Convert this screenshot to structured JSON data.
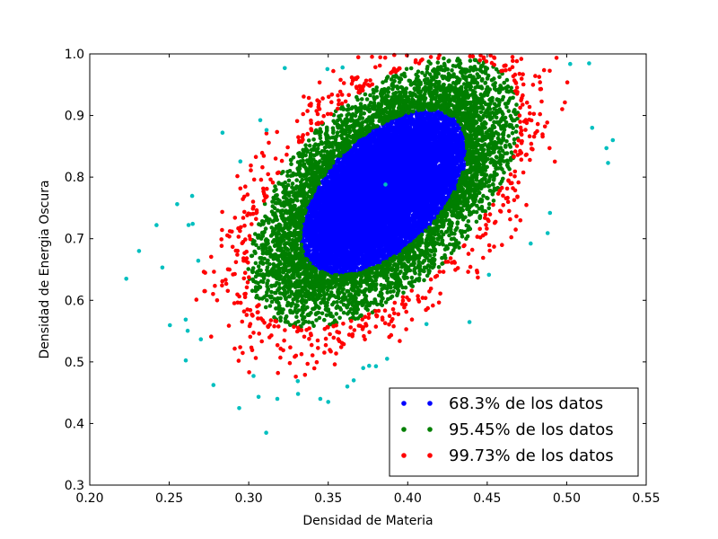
{
  "chart_data": {
    "type": "scatter",
    "title": "",
    "xlabel": "Densidad de Materia",
    "ylabel": "Densidad de Energia Oscura",
    "xlim": [
      0.2,
      0.55
    ],
    "ylim": [
      0.3,
      1.0
    ],
    "xticks": [
      "0.20",
      "0.25",
      "0.30",
      "0.35",
      "0.40",
      "0.45",
      "0.50",
      "0.55"
    ],
    "yticks": [
      "0.3",
      "0.4",
      "0.5",
      "0.6",
      "0.7",
      "0.8",
      "0.9",
      "1.0"
    ],
    "grid": false,
    "legend_position": "lower-right",
    "distribution": {
      "center": [
        0.385,
        0.775
      ],
      "covariance": [
        [
          0.00118,
          0.00162
        ],
        [
          0.00162,
          0.0078
        ]
      ]
    },
    "series": [
      {
        "name": "68.3% de los datos",
        "color": "#0000ff",
        "sigma_band": [
          0,
          1.515
        ]
      },
      {
        "name": "95.45% de los datos",
        "color": "#007f00",
        "sigma_band": [
          1.515,
          2.486
        ]
      },
      {
        "name": "99.73% de los datos",
        "color": "#ff0000",
        "sigma_band": [
          2.486,
          3.439
        ]
      },
      {
        "name": "",
        "color": "#00bfbf",
        "sigma_band": [
          3.439,
          4.5
        ]
      }
    ],
    "outlier_points": [
      [
        0.223,
        0.635
      ],
      [
        0.231,
        0.68
      ],
      [
        0.242,
        0.722
      ],
      [
        0.255,
        0.756
      ],
      [
        0.294,
        0.425
      ],
      [
        0.311,
        0.385
      ],
      [
        0.318,
        0.44
      ],
      [
        0.331,
        0.448
      ],
      [
        0.345,
        0.44
      ],
      [
        0.35,
        0.435
      ],
      [
        0.362,
        0.46
      ],
      [
        0.366,
        0.47
      ],
      [
        0.372,
        0.49
      ],
      [
        0.38,
        0.493
      ],
      [
        0.387,
        0.505
      ],
      [
        0.359,
        0.978
      ],
      [
        0.371,
        1.0
      ],
      [
        0.386,
        0.788
      ],
      [
        0.488,
        0.709
      ],
      [
        0.516,
        0.88
      ],
      [
        0.525,
        0.847
      ],
      [
        0.526,
        0.823
      ],
      [
        0.529,
        0.86
      ]
    ]
  }
}
